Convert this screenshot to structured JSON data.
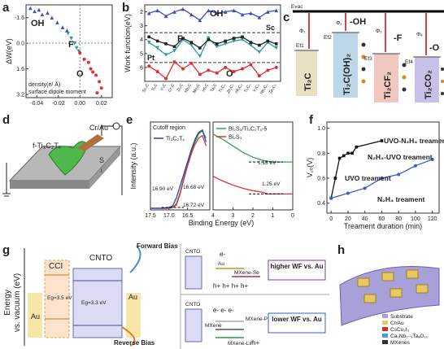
{
  "panel_labels": [
    "a",
    "b",
    "c",
    "d",
    "e",
    "f",
    "g",
    "h"
  ],
  "chart_data": [
    {
      "type": "scatter",
      "ylabel": "ΔW(eV)",
      "xlabel_lines": [
        "density(e/ Å)",
        "surface dipole moment"
      ],
      "xlim": [
        -0.05,
        0.03
      ],
      "xticks": [
        -0.04,
        -0.02,
        {
          "value": 0,
          "label": "0.00"
        },
        0.02
      ],
      "ylim": [
        -2.4,
        3.4
      ],
      "y_inverted": true,
      "yticks": [
        -1.6,
        {
          "value": 0,
          "label": "0.0"
        },
        1.6,
        3.2
      ],
      "series": [
        {
          "name": "OH",
          "color": "#3a4fc2",
          "marker": "triangle",
          "x": [
            -0.046,
            -0.042,
            -0.038,
            -0.035,
            -0.03,
            -0.026,
            -0.021,
            -0.016,
            -0.012
          ],
          "values": [
            -2.2,
            -2.0,
            -2.1,
            -1.8,
            -1.9,
            -1.6,
            -1.3,
            -1.0,
            -0.8
          ]
        },
        {
          "name": "F",
          "color": "#2a9d9a",
          "marker": "triangle-down",
          "x": [
            -0.011,
            -0.008,
            -0.005,
            -0.003,
            -0.001
          ],
          "values": [
            -0.6,
            -0.3,
            0.0,
            0.3,
            0.5
          ]
        },
        {
          "name": "O",
          "color": "#e03030",
          "marker": "circle",
          "x": [
            0.0,
            0.004,
            0.008,
            0.01,
            0.012,
            0.015,
            0.018,
            0.02,
            0.016
          ],
          "values": [
            0.6,
            1.0,
            1.2,
            1.6,
            1.8,
            2.0,
            2.4,
            2.8,
            3.1
          ]
        }
      ]
    },
    {
      "type": "line",
      "ylabel": "Work function(eV)",
      "categories": [
        "Sc₂C",
        "Ti₂C",
        "V₂C",
        "Cr₂C",
        "Zr₂C",
        "Nb₂C",
        "Mo₂C",
        "Hf₂C",
        "Ta₂C",
        "Ti₃C₂",
        "Zr₃C₂",
        "Hf₃C₂",
        "Ti₄C₃",
        "V₄C₃",
        "Nb₄C₃",
        "Ta₄C₃"
      ],
      "ylim": [
        1.5,
        7
      ],
      "y_inverted": true,
      "yticks": [
        2,
        3,
        4,
        5,
        6
      ],
      "reference_lines": [
        {
          "label": "Sc",
          "value": 3.5
        },
        {
          "label": "Pt",
          "value": 5.65
        }
      ],
      "series": [
        {
          "name": "OH",
          "color": "#3a4fc2",
          "marker": "triangle",
          "values": [
            2.1,
            1.9,
            2.3,
            2.0,
            1.8,
            2.2,
            2.6,
            1.9,
            2.1,
            2.0,
            1.9,
            2.2,
            2.1,
            2.4,
            2.0,
            1.9
          ]
        },
        {
          "name": "F",
          "color": "#2a9d9a",
          "marker": "triangle-down",
          "values": [
            4.2,
            4.6,
            5.1,
            4.8,
            4.0,
            4.4,
            5.2,
            3.9,
            4.5,
            4.3,
            4.1,
            4.0,
            4.4,
            4.9,
            4.2,
            4.6
          ]
        },
        {
          "color": "#222222",
          "marker": "square",
          "values": [
            3.8,
            4.1,
            4.3,
            4.5,
            3.9,
            4.2,
            4.6,
            4.0,
            4.3,
            4.1,
            3.9,
            3.8,
            4.2,
            4.4,
            4.1,
            4.3
          ]
        },
        {
          "name": "O",
          "color": "#e03030",
          "marker": "circle",
          "values": [
            5.9,
            6.3,
            6.8,
            5.6,
            6.1,
            5.7,
            6.5,
            6.2,
            6.4,
            6.0,
            6.3,
            6.1,
            5.8,
            6.6,
            6.2,
            6.0
          ]
        }
      ]
    },
    {
      "type": "line",
      "title": "Cutoff region",
      "ylabel": "Intensity (a.u.)",
      "xlabel": "Binding Energy (eV)",
      "xlim": [
        17.5,
        15.9
      ],
      "xticks": [
        17.5,
        {
          "value": 17,
          "label": "17.0"
        },
        16.5
      ],
      "ylim": [
        0,
        1.1
      ],
      "x": [
        17.5,
        17.2,
        17.0,
        16.9,
        16.8,
        16.7,
        16.6,
        16.5,
        16.4,
        16.3,
        16.2,
        16.1,
        16.0
      ],
      "annotations": [
        "16.90 eV",
        "16.68 eV",
        "16.72 eV"
      ],
      "series": [
        {
          "color": "#2aa84a",
          "values": [
            0.02,
            0.02,
            0.02,
            0.03,
            0.08,
            0.22,
            0.4,
            0.57,
            0.72,
            0.85,
            0.95,
            0.99,
            0.9
          ]
        },
        {
          "color": "#e03030",
          "values": [
            0.02,
            0.02,
            0.02,
            0.03,
            0.06,
            0.2,
            0.38,
            0.55,
            0.7,
            0.82,
            0.9,
            0.93,
            0.8
          ]
        },
        {
          "name": "Ti₃C₂Tₓ",
          "color": "#2a3fb0",
          "values": [
            0.02,
            0.02,
            0.03,
            0.05,
            0.15,
            0.3,
            0.45,
            0.6,
            0.75,
            0.88,
            0.97,
            1.0,
            0.85
          ]
        }
      ]
    },
    {
      "type": "line",
      "xlim": [
        4,
        0
      ],
      "xticks": [
        4,
        3,
        2,
        1,
        0
      ],
      "ylim": [
        0,
        1.1
      ],
      "x": [
        4,
        3.5,
        3,
        2.5,
        2,
        1.5,
        1.25,
        1,
        0.5,
        0
      ],
      "annotations": [
        "1.13 eV",
        "1.25 eV"
      ],
      "series": [
        {
          "name": "Bi₂S₃/Ti₃C₂Tₓ-5",
          "color": "#2aa84a",
          "values": [
            0.95,
            0.88,
            0.8,
            0.72,
            0.66,
            0.62,
            0.61,
            0.6,
            0.6,
            0.6
          ]
        },
        {
          "name": "Bi₂S₃",
          "color": "#e03030",
          "values": [
            0.42,
            0.36,
            0.31,
            0.27,
            0.24,
            0.22,
            0.2,
            0.2,
            0.2,
            0.2
          ]
        }
      ]
    },
    {
      "type": "line",
      "ylabel": "V꜀ₒ(V)",
      "xlabel": "Treament duration (min)",
      "xlim": [
        -5,
        128
      ],
      "xticks": [
        0,
        20,
        40,
        60,
        80,
        100,
        120
      ],
      "ylim": [
        0.32,
        1.05
      ],
      "yticks": [
        0.4,
        0.6,
        0.8,
        {
          "value": 1,
          "label": "1.0"
        }
      ],
      "annotations": [
        "UVO-N₂H₄ treament",
        "N₂H₄-UVO treament"
      ],
      "series": [
        {
          "name": "UVO treament",
          "color": "#111111",
          "marker": "square",
          "x": [
            0,
            5,
            10,
            15,
            20,
            25,
            30,
            60
          ],
          "values": [
            0.44,
            0.6,
            0.76,
            0.78,
            0.8,
            0.8,
            0.85,
            0.9
          ]
        },
        {
          "name": "N₂H₄ treament",
          "color": "#3a5fcf",
          "marker": "circle",
          "x": [
            0,
            20,
            40,
            60,
            80,
            100,
            120
          ],
          "values": [
            0.44,
            0.48,
            0.52,
            0.6,
            0.63,
            0.7,
            0.75
          ]
        }
      ]
    }
  ],
  "panel_c": {
    "vacuum": "Evac",
    "phi": [
      "Φ₁",
      "Φ₂",
      "Φ₃",
      "Φ₄"
    ],
    "fermi": [
      "Ef1",
      "Ef2",
      "Ef3",
      "Ef4"
    ],
    "groups": [
      "-OH",
      "-F",
      "-O"
    ],
    "materials": [
      "Ti₂C",
      "Ti₂C(OH)₂",
      "Ti₂CF₂",
      "Ti₂CO₂"
    ]
  },
  "panel_d": {
    "flake": "f-Ti₃C₂Tₓ",
    "electrode": "Cr/Au",
    "substrate": [
      "S",
      "i"
    ]
  },
  "panel_g": {
    "ylabel": [
      "Energy",
      "vs. vacuum (eV)"
    ],
    "layers": [
      "Au",
      "CCI",
      "CNTO",
      "Au"
    ],
    "gaps": [
      "Eg=3.5 eV",
      "Eg=3.3 eV"
    ],
    "bias": [
      "Forward Bias",
      "Reverse Bias"
    ],
    "top": {
      "cnto": "CNTO",
      "au": "Au",
      "mxene": "MXene-Se",
      "note": "higher WF vs. Au",
      "carriers": [
        "e-",
        "h+ h+ h+ h+"
      ]
    },
    "bottom": {
      "cnto": "CNTO",
      "mxenes": [
        "MXene-PEIE",
        "MXene",
        "MXene-LiF"
      ],
      "note": "lower WF vs. Au",
      "carriers": [
        "e-  e-  e-",
        "h+"
      ]
    }
  },
  "panel_h": {
    "legend": [
      "Substrate",
      "Cr/Au",
      "CsCu₂I₃",
      "Ca₂Nb₃₋ₓTaₓO₁₀",
      "MXenes"
    ]
  }
}
